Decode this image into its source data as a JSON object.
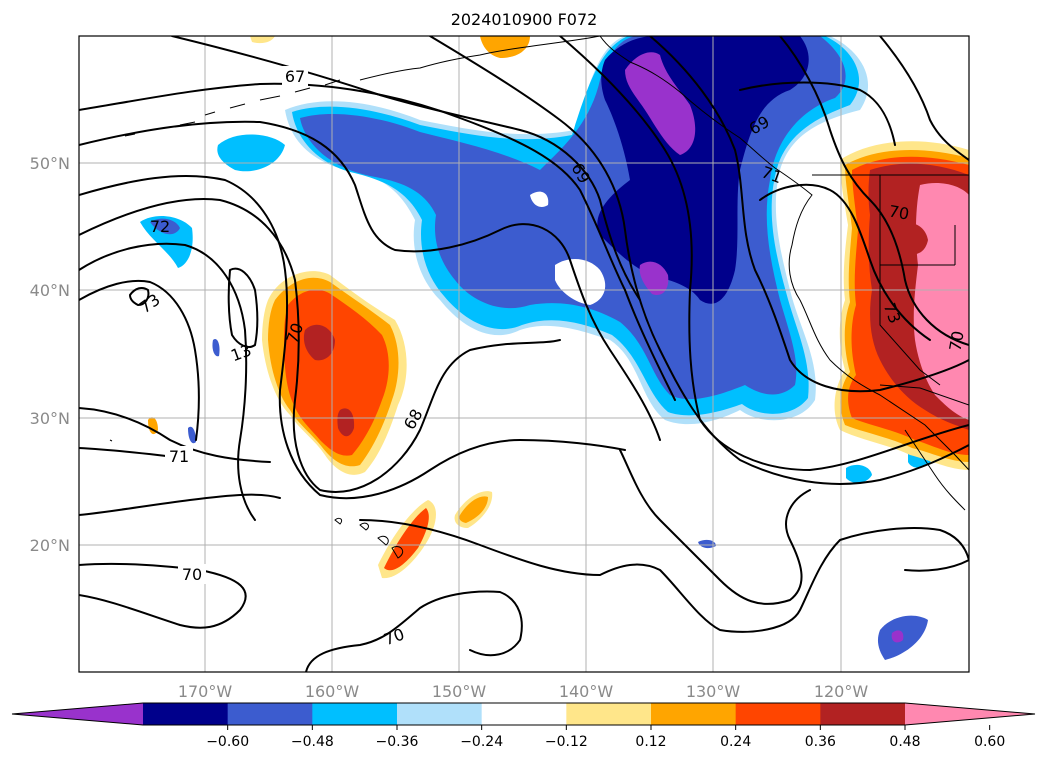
{
  "title": "2024010900 F072",
  "longitude_labels": [
    "170°W",
    "160°W",
    "150°W",
    "140°W",
    "130°W",
    "120°W"
  ],
  "latitude_labels": [
    "50°N",
    "40°N",
    "30°N",
    "20°N"
  ],
  "contour_labels": [
    "67",
    "69",
    "71",
    "72",
    "73",
    "13",
    "70",
    "68",
    "71",
    "70",
    "70",
    "69",
    "70",
    "73",
    "70"
  ],
  "colorbar": {
    "ticks": [
      "−0.60",
      "−0.48",
      "−0.36",
      "−0.24",
      "−0.12",
      "0.12",
      "0.24",
      "0.36",
      "0.48",
      "0.60"
    ],
    "colors": [
      "#9932cc",
      "#00008b",
      "#3c5ccf",
      "#00bfff",
      "#b0e0fa",
      "#ffffff",
      "#ffe68a",
      "#ffa500",
      "#ff4500",
      "#b22222",
      "#ff88b0"
    ]
  },
  "palette": {
    "purple": "#9932cc",
    "navy": "#00008b",
    "royal": "#3c5ccf",
    "sky": "#00bfff",
    "pale_blue": "#b0e0fa",
    "yellow": "#ffe68a",
    "orange": "#ffa500",
    "red_orange": "#ff4500",
    "dark_red": "#b22222",
    "pink": "#ff88b0"
  }
}
